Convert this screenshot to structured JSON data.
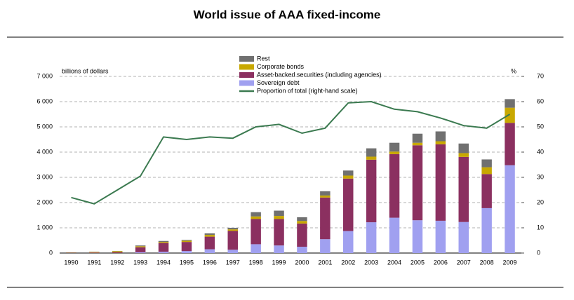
{
  "chart_data": {
    "type": "stacked-bar-line",
    "title": "World issue of AAA fixed-income",
    "y_label": "billions of dollars",
    "y2_label": "%",
    "categories": [
      "1990",
      "1991",
      "1992",
      "1993",
      "1994",
      "1995",
      "1996",
      "1997",
      "1998",
      "1999",
      "2000",
      "2001",
      "2002",
      "2003",
      "2004",
      "2005",
      "2006",
      "2007",
      "2008",
      "2009"
    ],
    "series": [
      {
        "name": "Sovereign debt",
        "color": "#a0a0f0",
        "values": [
          0,
          0,
          0,
          30,
          50,
          80,
          150,
          130,
          350,
          300,
          250,
          550,
          870,
          1220,
          1400,
          1300,
          1280,
          1230,
          1780,
          3480
        ]
      },
      {
        "name": "Asset-backed securities (including agencies)",
        "color": "#8b3060",
        "values": [
          10,
          20,
          30,
          200,
          350,
          360,
          500,
          750,
          1000,
          1050,
          920,
          1650,
          2080,
          2480,
          2520,
          2970,
          3030,
          2580,
          1350,
          1680
        ]
      },
      {
        "name": "Corporate bonds",
        "color": "#c8a800",
        "values": [
          10,
          20,
          40,
          40,
          40,
          50,
          70,
          60,
          100,
          120,
          100,
          80,
          120,
          120,
          100,
          100,
          120,
          150,
          270,
          600
        ]
      },
      {
        "name": "Rest",
        "color": "#707070",
        "values": [
          10,
          10,
          10,
          30,
          40,
          30,
          60,
          60,
          170,
          210,
          150,
          170,
          200,
          330,
          350,
          360,
          390,
          380,
          310,
          340
        ]
      },
      {
        "name": "Proportion of total (right-hand scale)",
        "color": "#3b7a50",
        "type": "line",
        "axis": "y2",
        "values": [
          22,
          19.5,
          25,
          30.5,
          46,
          45,
          46,
          45.5,
          50,
          51,
          47.5,
          49.5,
          59.5,
          60,
          57,
          56,
          53.5,
          50.5,
          49.5,
          55
        ]
      }
    ],
    "ylim": [
      0,
      7000
    ],
    "yticks": [
      0,
      {
        "value": 1000,
        "label": "1 000"
      },
      {
        "value": 2000,
        "label": "2 000"
      },
      {
        "value": 3000,
        "label": "3 000"
      },
      {
        "value": 4000,
        "label": "4 000"
      },
      {
        "value": 5000,
        "label": "5 000"
      },
      {
        "value": 6000,
        "label": "6 000"
      },
      {
        "value": 7000,
        "label": "7 000"
      }
    ],
    "y2lim": [
      0,
      70
    ],
    "y2ticks": [
      0,
      10,
      20,
      30,
      40,
      50,
      60,
      70
    ],
    "grid": true
  }
}
